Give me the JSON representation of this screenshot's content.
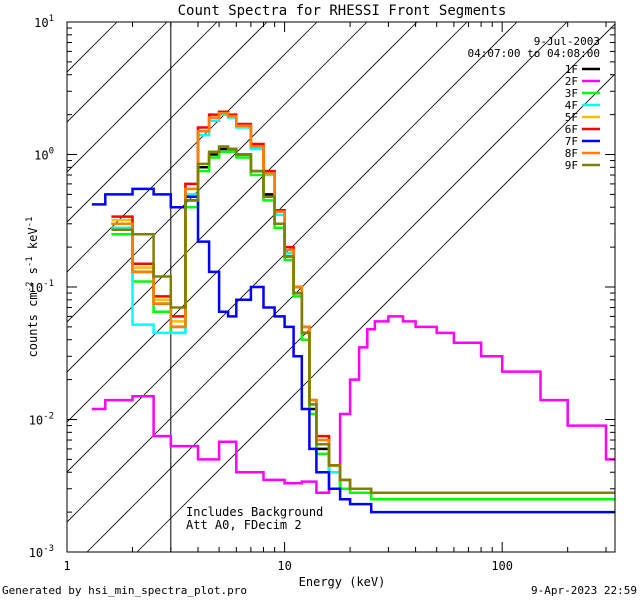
{
  "chart_data": {
    "type": "line",
    "title": "Count Spectra for RHESSI Front Segments",
    "date": "9-Jul-2003",
    "time_range": "04:07:00 to 04:08:00",
    "xlabel": "Energy (keV)",
    "ylabel_base": "counts cm",
    "ylabel_exp1": "-2",
    "ylabel_mid": " s",
    "ylabel_exp2": "-1",
    "ylabel_mid2": " keV",
    "ylabel_exp3": "-1",
    "xscale": "log",
    "yscale": "log",
    "xlim": [
      1,
      330
    ],
    "ylim": [
      0.001,
      10
    ],
    "xticks": [
      {
        "v": 1,
        "label": "1"
      },
      {
        "v": 10,
        "label": "10"
      },
      {
        "v": 100,
        "label": "100"
      }
    ],
    "yticks": [
      {
        "v": 0.001,
        "base": "10",
        "exp": "-3"
      },
      {
        "v": 0.01,
        "base": "10",
        "exp": "-2"
      },
      {
        "v": 0.1,
        "base": "10",
        "exp": "-1"
      },
      {
        "v": 1,
        "base": "10",
        "exp": "0"
      },
      {
        "v": 10,
        "base": "10",
        "exp": "1"
      }
    ],
    "hatched_region": [
      1,
      3
    ],
    "annotation_lines": [
      "Includes Background",
      "Att A0, FDecim 2"
    ],
    "legend_position": "top-right",
    "series": [
      {
        "name": "1F",
        "color": "#000000",
        "x": [
          1.6,
          2.0,
          2.5,
          3.0,
          3.5,
          4.0,
          4.5,
          5.0,
          5.5,
          6.0,
          7.0,
          8.0,
          9.0,
          10.0,
          11.0,
          12.0,
          13.0,
          14.0,
          16.0,
          18.0,
          20.0,
          25.0
        ],
        "values": [
          0.3,
          0.13,
          0.075,
          0.05,
          0.45,
          0.8,
          1.0,
          1.1,
          1.1,
          1.0,
          0.75,
          0.5,
          0.3,
          0.17,
          0.09,
          0.045,
          0.012,
          0.006,
          0.004,
          0.003,
          0.003,
          0.0028
        ]
      },
      {
        "name": "2F",
        "color": "#ff00ff",
        "x": [
          1.3,
          1.5,
          2.0,
          2.5,
          3.0,
          4.0,
          5.0,
          6.0,
          8.0,
          10.0,
          12.0,
          14.0,
          16.0,
          18.0,
          20.0,
          22.0,
          24.0,
          26.0,
          30.0,
          35.0,
          40.0,
          50.0,
          60.0,
          80.0,
          100.0,
          150.0,
          200.0,
          300.0
        ],
        "values": [
          0.012,
          0.014,
          0.015,
          0.0075,
          0.0063,
          0.005,
          0.0068,
          0.004,
          0.0035,
          0.0033,
          0.0034,
          0.0028,
          0.004,
          0.011,
          0.02,
          0.035,
          0.048,
          0.055,
          0.06,
          0.055,
          0.05,
          0.045,
          0.038,
          0.03,
          0.023,
          0.014,
          0.009,
          0.005
        ]
      },
      {
        "name": "3F",
        "color": "#00ff00",
        "x": [
          1.6,
          2.0,
          2.5,
          3.0,
          3.5,
          4.0,
          4.5,
          5.0,
          5.5,
          6.0,
          7.0,
          8.0,
          9.0,
          10.0,
          11.0,
          12.0,
          13.0,
          14.0,
          16.0,
          18.0,
          20.0,
          25.0
        ],
        "values": [
          0.25,
          0.11,
          0.065,
          0.045,
          0.4,
          0.75,
          0.95,
          1.05,
          1.05,
          0.95,
          0.7,
          0.45,
          0.28,
          0.16,
          0.085,
          0.04,
          0.011,
          0.0055,
          0.004,
          0.003,
          0.0028,
          0.0025
        ]
      },
      {
        "name": "4F",
        "color": "#00ffff",
        "x": [
          1.6,
          2.0,
          2.5,
          3.0,
          3.5,
          4.0,
          4.5,
          5.0,
          5.5,
          6.0,
          7.0,
          8.0,
          9.0,
          10.0,
          11.0,
          12.0,
          13.0,
          14.0,
          16.0,
          18.0,
          20.0,
          25.0
        ],
        "values": [
          0.28,
          0.052,
          0.045,
          0.045,
          0.5,
          1.4,
          1.8,
          2.0,
          1.9,
          1.6,
          1.1,
          0.7,
          0.35,
          0.18,
          0.1,
          0.05,
          0.013,
          0.007,
          0.004,
          0.0035,
          0.003,
          0.0028
        ]
      },
      {
        "name": "5F",
        "color": "#ffbf00",
        "x": [
          1.6,
          2.0,
          2.5,
          3.0,
          3.5,
          4.0,
          4.5,
          5.0,
          5.5,
          6.0,
          7.0,
          8.0,
          9.0,
          10.0,
          11.0,
          12.0,
          13.0,
          14.0,
          16.0,
          18.0,
          20.0,
          25.0
        ],
        "values": [
          0.32,
          0.14,
          0.08,
          0.055,
          0.55,
          1.5,
          1.9,
          2.1,
          1.95,
          1.65,
          1.15,
          0.72,
          0.37,
          0.19,
          0.1,
          0.05,
          0.014,
          0.007,
          0.0045,
          0.0035,
          0.003,
          0.0028
        ]
      },
      {
        "name": "6F",
        "color": "#ff0000",
        "x": [
          1.6,
          2.0,
          2.5,
          3.0,
          3.5,
          4.0,
          4.5,
          5.0,
          5.5,
          6.0,
          7.0,
          8.0,
          9.0,
          10.0,
          11.0,
          12.0,
          13.0,
          14.0,
          16.0,
          18.0,
          20.0,
          25.0
        ],
        "values": [
          0.34,
          0.15,
          0.085,
          0.06,
          0.6,
          1.6,
          2.0,
          2.1,
          2.0,
          1.7,
          1.2,
          0.75,
          0.38,
          0.2,
          0.1,
          0.05,
          0.014,
          0.0075,
          0.0045,
          0.0035,
          0.003,
          0.0028
        ]
      },
      {
        "name": "7F",
        "color": "#0000ff",
        "x": [
          1.3,
          1.5,
          2.0,
          2.5,
          3.0,
          3.5,
          4.0,
          4.5,
          5.0,
          5.5,
          6.0,
          7.0,
          8.0,
          9.0,
          10.0,
          11.0,
          12.0,
          13.0,
          14.0,
          16.0,
          18.0,
          20.0,
          25.0
        ],
        "values": [
          0.42,
          0.5,
          0.55,
          0.5,
          0.4,
          0.48,
          0.22,
          0.13,
          0.065,
          0.06,
          0.08,
          0.1,
          0.07,
          0.06,
          0.05,
          0.03,
          0.012,
          0.006,
          0.004,
          0.003,
          0.0025,
          0.0023,
          0.002
        ]
      },
      {
        "name": "8F",
        "color": "#ff8000",
        "x": [
          1.6,
          2.0,
          2.5,
          3.0,
          3.5,
          4.0,
          4.5,
          5.0,
          5.5,
          6.0,
          7.0,
          8.0,
          9.0,
          10.0,
          11.0,
          12.0,
          13.0,
          14.0,
          16.0,
          18.0,
          20.0,
          25.0
        ],
        "values": [
          0.3,
          0.13,
          0.075,
          0.05,
          0.55,
          1.5,
          1.9,
          2.05,
          1.95,
          1.65,
          1.15,
          0.72,
          0.37,
          0.19,
          0.1,
          0.05,
          0.014,
          0.007,
          0.0045,
          0.0035,
          0.003,
          0.0028
        ]
      },
      {
        "name": "9F",
        "color": "#808000",
        "x": [
          1.6,
          2.0,
          2.5,
          3.0,
          3.5,
          4.0,
          4.5,
          5.0,
          5.5,
          6.0,
          7.0,
          8.0,
          9.0,
          10.0,
          11.0,
          12.0,
          13.0,
          14.0,
          16.0,
          18.0,
          20.0,
          25.0
        ],
        "values": [
          0.27,
          0.25,
          0.12,
          0.07,
          0.45,
          0.85,
          1.05,
          1.15,
          1.1,
          1.0,
          0.75,
          0.48,
          0.3,
          0.17,
          0.09,
          0.045,
          0.013,
          0.0065,
          0.0045,
          0.0035,
          0.003,
          0.0028
        ]
      }
    ]
  },
  "footer": {
    "generated_by": "Generated by hsi_min_spectra_plot.pro",
    "timestamp": "9-Apr-2023 22:59"
  }
}
